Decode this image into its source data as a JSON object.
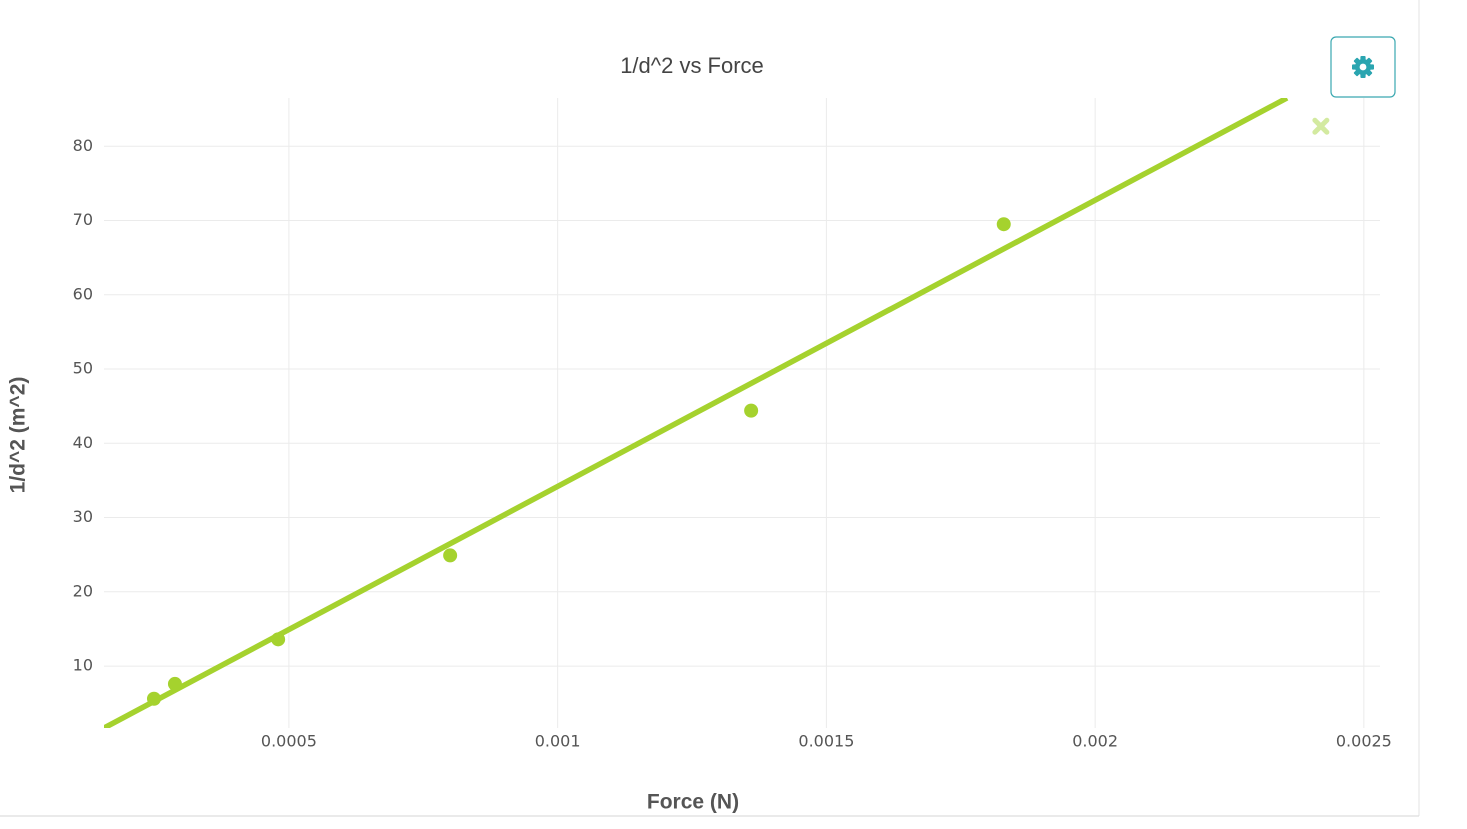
{
  "chart_data": {
    "type": "scatter",
    "title": "1/d^2 vs Force",
    "x_label": "Force (N)",
    "y_label": "1/d^2 (m^2)",
    "xlim": [
      0.000156,
      0.00253
    ],
    "ylim": [
      1.66,
      86.5
    ],
    "xticks": [
      0.0005,
      0.001,
      0.0015,
      0.002,
      0.0025
    ],
    "yticks": [
      10,
      20,
      30,
      40,
      50,
      60,
      70,
      80
    ],
    "grid": true,
    "series": [
      {
        "color": "#a5d22e",
        "marker": "circle",
        "x": [
          0.000249,
          0.000288,
          0.00048,
          0.0008,
          0.00136,
          0.00183
        ],
        "values": [
          5.6,
          7.6,
          13.6,
          24.9,
          44.4,
          69.5
        ]
      },
      {
        "color": "#d3eaa0",
        "marker": "x",
        "x": [
          0.00242
        ],
        "values": [
          82.7
        ]
      },
      {
        "color": "#a5d22e",
        "marker": "line",
        "x": [
          0.000156,
          0.002357
        ],
        "values": [
          1.66,
          86.5
        ]
      }
    ]
  }
}
